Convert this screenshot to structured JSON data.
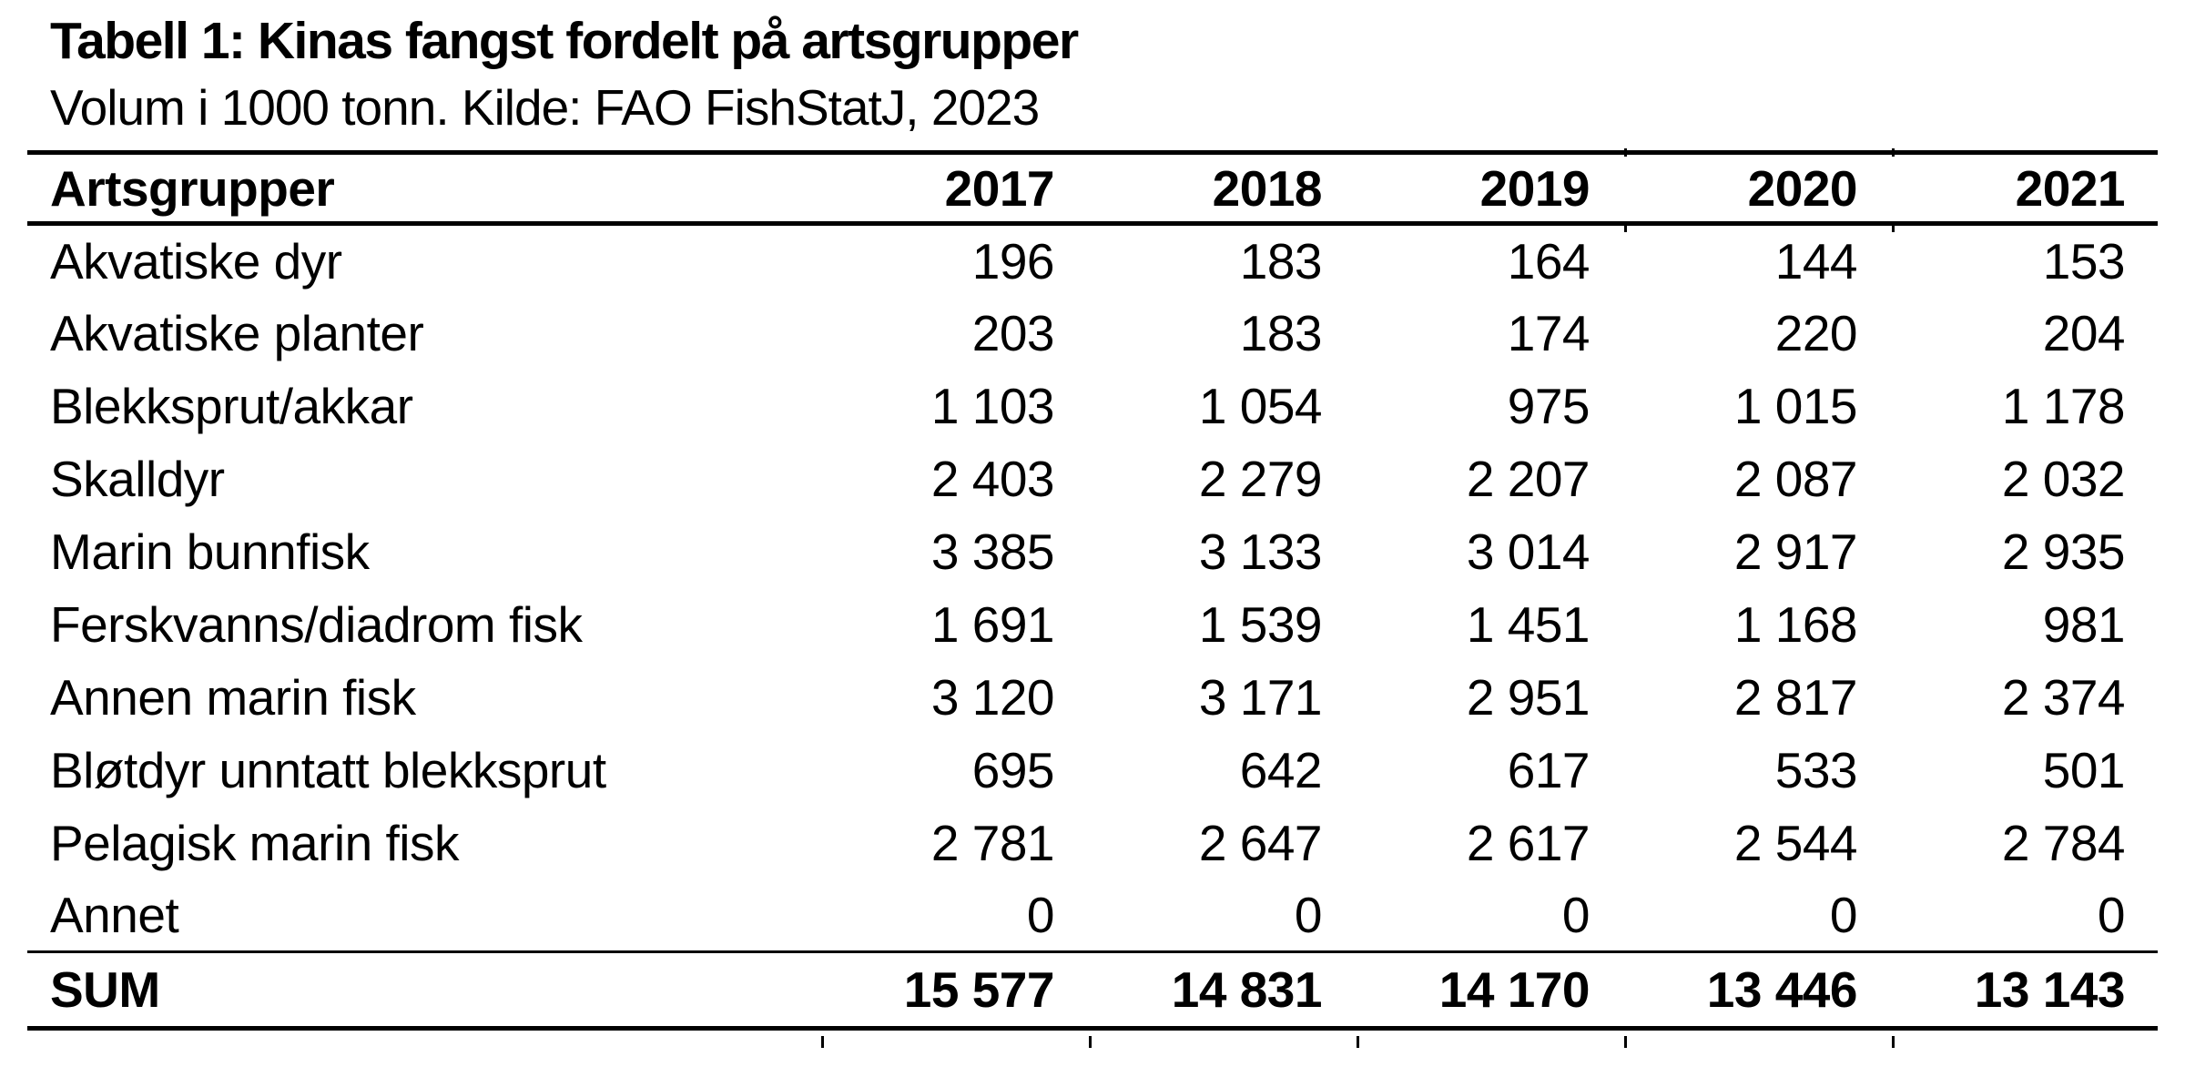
{
  "page": {
    "title": "Tabell 1: Kinas fangst fordelt på artsgrupper",
    "subtitle": "Volum i 1000 tonn. Kilde: FAO FishStatJ, 2023"
  },
  "table": {
    "header": {
      "label": "Artsgrupper",
      "years": [
        "2017",
        "2018",
        "2019",
        "2020",
        "2021"
      ]
    },
    "rows": [
      {
        "label": "Akvatiske dyr",
        "values": [
          "196",
          "183",
          "164",
          "144",
          "153"
        ]
      },
      {
        "label": "Akvatiske planter",
        "values": [
          "203",
          "183",
          "174",
          "220",
          "204"
        ]
      },
      {
        "label": "Blekksprut/akkar",
        "values": [
          "1 103",
          "1 054",
          "975",
          "1 015",
          "1 178"
        ]
      },
      {
        "label": "Skalldyr",
        "values": [
          "2 403",
          "2 279",
          "2 207",
          "2 087",
          "2 032"
        ]
      },
      {
        "label": "Marin bunnfisk",
        "values": [
          "3 385",
          "3 133",
          "3 014",
          "2 917",
          "2 935"
        ]
      },
      {
        "label": "Ferskvanns/diadrom fisk",
        "values": [
          "1 691",
          "1 539",
          "1 451",
          "1 168",
          "981"
        ]
      },
      {
        "label": "Annen marin fisk",
        "values": [
          "3 120",
          "3 171",
          "2 951",
          "2 817",
          "2 374"
        ]
      },
      {
        "label": "Bløtdyr unntatt blekksprut",
        "values": [
          "695",
          "642",
          "617",
          "533",
          "501"
        ]
      },
      {
        "label": "Pelagisk marin fisk",
        "values": [
          "2 781",
          "2 647",
          "2 617",
          "2 544",
          "2 784"
        ]
      },
      {
        "label": "Annet",
        "values": [
          "0",
          "0",
          "0",
          "0",
          "0"
        ]
      }
    ],
    "sum_row": {
      "label": "SUM",
      "values": [
        "15 577",
        "14 831",
        "14 170",
        "13 446",
        "13 143"
      ]
    }
  },
  "colors": {
    "background": "#ffffff",
    "text": "#000000",
    "rule": "#000000"
  }
}
